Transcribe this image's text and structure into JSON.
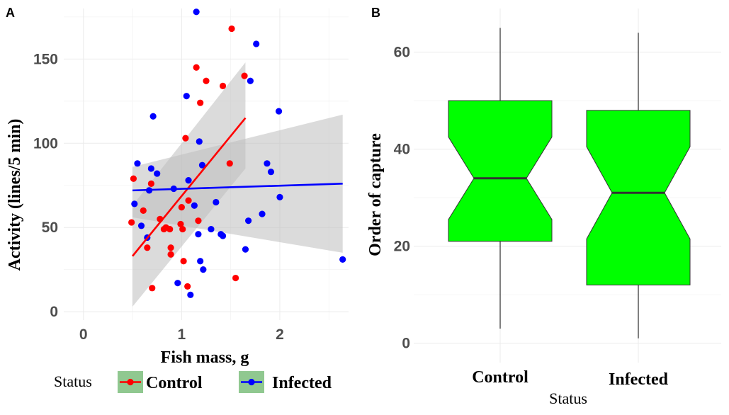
{
  "chart_data": [
    {
      "panel": "A",
      "type": "scatter",
      "xlabel": "Fish mass, g",
      "ylabel": "Activity (lines/5 min)",
      "xlim": [
        -0.2,
        2.7
      ],
      "ylim": [
        -5,
        180
      ],
      "xticks": [
        0,
        1,
        2
      ],
      "yticks": [
        0,
        50,
        100,
        150
      ],
      "grid": true,
      "legend_title": "Status",
      "legend_position": "bottom",
      "colors": {
        "Control": "#ff0000",
        "Infected": "#0000ff",
        "ribbon": "#bebebe",
        "legend_key_bg": "#90c890"
      },
      "series": [
        {
          "name": "Control",
          "points": [
            [
              0.51,
              79
            ],
            [
              0.49,
              53
            ],
            [
              0.61,
              60
            ],
            [
              0.65,
              38
            ],
            [
              0.69,
              76
            ],
            [
              0.7,
              14
            ],
            [
              0.78,
              55
            ],
            [
              0.82,
              49
            ],
            [
              0.84,
              50
            ],
            [
              0.88,
              49
            ],
            [
              0.89,
              38
            ],
            [
              0.89,
              34
            ],
            [
              0.99,
              52
            ],
            [
              1.0,
              62
            ],
            [
              1.01,
              49
            ],
            [
              1.02,
              30
            ],
            [
              1.04,
              103
            ],
            [
              1.06,
              15
            ],
            [
              1.07,
              66
            ],
            [
              1.15,
              145
            ],
            [
              1.17,
              54
            ],
            [
              1.19,
              124
            ],
            [
              1.25,
              137
            ],
            [
              1.42,
              134
            ],
            [
              1.49,
              88
            ],
            [
              1.51,
              168
            ],
            [
              1.55,
              20
            ],
            [
              1.64,
              140
            ]
          ],
          "fit": {
            "x": [
              0.5,
              1.65
            ],
            "y": [
              33,
              115
            ],
            "ci_lower": [
              3,
              85
            ],
            "ci_upper": [
              63,
              148
            ]
          }
        },
        {
          "name": "Infected",
          "points": [
            [
              0.52,
              64
            ],
            [
              0.55,
              88
            ],
            [
              0.59,
              51
            ],
            [
              0.65,
              44
            ],
            [
              0.67,
              72
            ],
            [
              0.69,
              85
            ],
            [
              0.71,
              116
            ],
            [
              0.75,
              82
            ],
            [
              0.92,
              73
            ],
            [
              0.96,
              17
            ],
            [
              1.05,
              128
            ],
            [
              1.07,
              78
            ],
            [
              1.09,
              10
            ],
            [
              1.13,
              63
            ],
            [
              1.15,
              178
            ],
            [
              1.17,
              46
            ],
            [
              1.18,
              101
            ],
            [
              1.19,
              30
            ],
            [
              1.21,
              87
            ],
            [
              1.22,
              25
            ],
            [
              1.3,
              49
            ],
            [
              1.35,
              65
            ],
            [
              1.4,
              46
            ],
            [
              1.42,
              45
            ],
            [
              1.65,
              37
            ],
            [
              1.68,
              54
            ],
            [
              1.7,
              137
            ],
            [
              1.76,
              159
            ],
            [
              1.82,
              58
            ],
            [
              1.87,
              88
            ],
            [
              1.91,
              83
            ],
            [
              1.99,
              119
            ],
            [
              2.0,
              68
            ],
            [
              2.64,
              31
            ]
          ],
          "fit": {
            "x": [
              0.5,
              2.64
            ],
            "y": [
              72,
              76
            ],
            "ci_lower": [
              56,
              35
            ],
            "ci_upper": [
              86,
              117
            ]
          }
        }
      ]
    },
    {
      "panel": "B",
      "type": "boxplot",
      "notched": true,
      "xlabel": "Status",
      "ylabel": "Order of capture",
      "categories": [
        "Control",
        "Infected"
      ],
      "ylim": [
        -4,
        69
      ],
      "yticks": [
        0,
        20,
        40,
        60
      ],
      "grid": true,
      "fill": "#00ff00",
      "boxes": [
        {
          "name": "Control",
          "min": 3,
          "q1": 21,
          "median": 34,
          "q3": 50,
          "max": 65,
          "notch_low": 25.5,
          "notch_high": 42.5
        },
        {
          "name": "Infected",
          "min": 1,
          "q1": 12,
          "median": 31,
          "q3": 48,
          "max": 64,
          "notch_low": 21.5,
          "notch_high": 40.5
        }
      ]
    }
  ]
}
